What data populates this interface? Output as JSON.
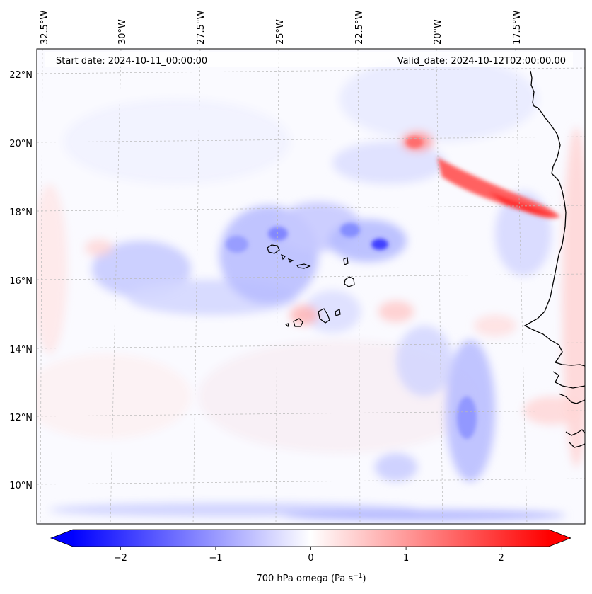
{
  "map": {
    "start_date": "Start date: 2024-10-11_00:00:00",
    "valid_date": "Valid_date: 2024-10-12T02:00:00.00",
    "lon_labels": [
      "32.5°W",
      "30°W",
      "27.5°W",
      "25°W",
      "22.5°W",
      "20°W",
      "17.5°W"
    ],
    "lat_labels": [
      "22°N",
      "20°N",
      "18°N",
      "16°N",
      "14°N",
      "12°N",
      "10°N"
    ],
    "gridlines": true,
    "coastline_color": "#000000",
    "field_description": "700 hPa vertical velocity (omega) field over the eastern tropical Atlantic, Cape Verde and the West African coast"
  },
  "colorbar": {
    "label": "700 hPa omega (Pa s",
    "label_sup": "−1",
    "label_close": ")",
    "ticks": [
      "−2",
      "−1",
      "0",
      "1",
      "2"
    ],
    "tick_values": [
      -2,
      -1,
      0,
      1,
      2
    ],
    "range": [
      -2.5,
      2.5
    ],
    "extend": "both",
    "cmap": "bwr",
    "colors": {
      "negative": "#0000ff",
      "zero": "#ffffff",
      "positive": "#ff0000"
    }
  }
}
